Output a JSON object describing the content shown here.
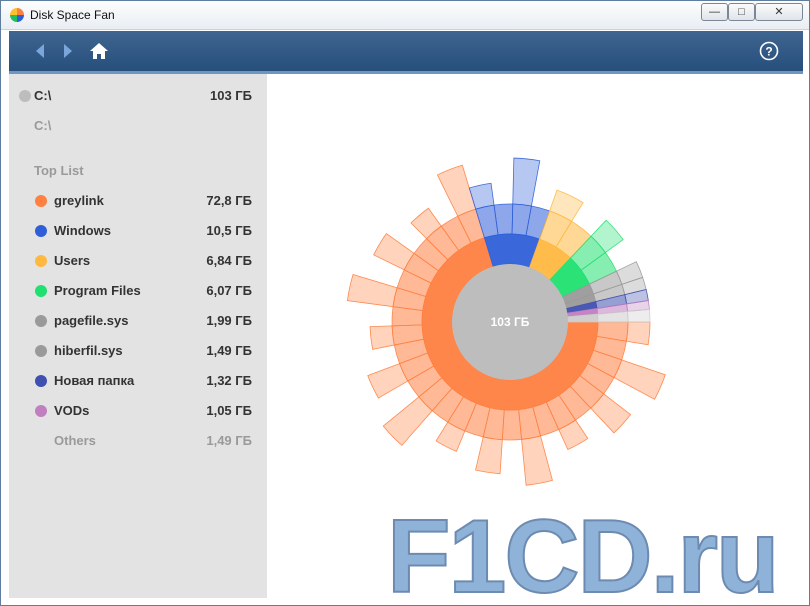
{
  "window": {
    "title": "Disk Space Fan"
  },
  "toolbar": {
    "back_icon": "back-arrow-icon",
    "forward_icon": "forward-arrow-icon",
    "home_icon": "home-icon",
    "help_icon": "help-icon"
  },
  "sidebar": {
    "drive": {
      "name": "C:\\",
      "size": "103 ГБ",
      "color": "#bdbdbd"
    },
    "path": "C:\\",
    "top_list_label": "Top List",
    "items": [
      {
        "name": "greylink",
        "size": "72,8 ГБ",
        "color": "#ff8040"
      },
      {
        "name": "Windows",
        "size": "10,5 ГБ",
        "color": "#2f5fd8"
      },
      {
        "name": "Users",
        "size": "6,84 ГБ",
        "color": "#ffb840"
      },
      {
        "name": "Program Files",
        "size": "6,07 ГБ",
        "color": "#20e070"
      },
      {
        "name": "pagefile.sys",
        "size": "1,99 ГБ",
        "color": "#9a9a9a"
      },
      {
        "name": "hiberfil.sys",
        "size": "1,49 ГБ",
        "color": "#9a9a9a"
      },
      {
        "name": "Новая папка",
        "size": "1,32 ГБ",
        "color": "#4050b0"
      },
      {
        "name": "VODs",
        "size": "1,05 ГБ",
        "color": "#c080c0"
      }
    ],
    "others": {
      "name": "Others",
      "size": "1,49 ГБ"
    }
  },
  "chart_data": {
    "type": "pie",
    "center_label": "103 ГБ",
    "categories": [
      "greylink",
      "Windows",
      "Users",
      "Program Files",
      "pagefile.sys",
      "hiberfil.sys",
      "Новая папка",
      "VODs",
      "Others"
    ],
    "values": [
      72.8,
      10.5,
      6.84,
      6.07,
      1.99,
      1.49,
      1.32,
      1.05,
      1.49
    ],
    "colors": [
      "#ff8040",
      "#2f5fd8",
      "#ffb840",
      "#20e070",
      "#9a9a9a",
      "#9a9a9a",
      "#4050b0",
      "#c080c0",
      "#cccccc"
    ]
  },
  "watermark": "F1CD.ru"
}
